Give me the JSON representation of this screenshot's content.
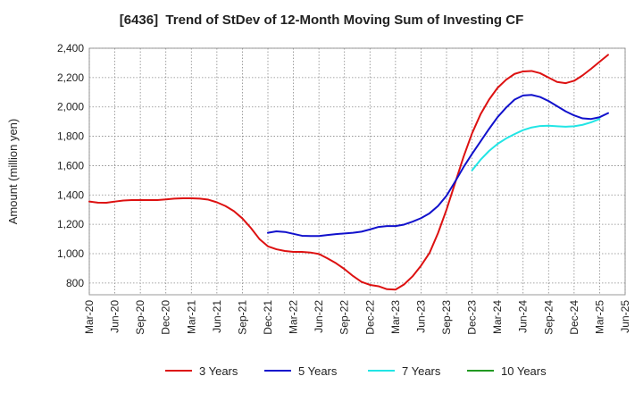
{
  "chart_data": {
    "type": "line",
    "title": "[6436]  Trend of StDev of 12-Month Moving Sum of Investing CF",
    "xlabel": "",
    "ylabel": "Amount (million yen)",
    "ylim": [
      720,
      2400
    ],
    "yticks": [
      800,
      1000,
      1200,
      1400,
      1600,
      1800,
      2000,
      2200,
      2400
    ],
    "ytick_labels": [
      "800",
      "1,000",
      "1,200",
      "1,400",
      "1,600",
      "1,800",
      "2,000",
      "2,200",
      "2,400"
    ],
    "x_start": "Mar-20",
    "x_months_total": 63,
    "xtick_labels": [
      "Mar-20",
      "Jun-20",
      "Sep-20",
      "Dec-20",
      "Mar-21",
      "Jun-21",
      "Sep-21",
      "Dec-21",
      "Mar-22",
      "Jun-22",
      "Sep-22",
      "Dec-22",
      "Mar-23",
      "Jun-23",
      "Sep-23",
      "Dec-23",
      "Mar-24",
      "Jun-24",
      "Sep-24",
      "Dec-24",
      "Mar-25",
      "Jun-25"
    ],
    "grid": true,
    "legend_position": "bottom",
    "series": [
      {
        "name": "3 Years",
        "color": "#dd1111",
        "start_month_index": 0,
        "values": [
          1355,
          1348,
          1347,
          1355,
          1362,
          1365,
          1366,
          1365,
          1365,
          1370,
          1375,
          1377,
          1377,
          1375,
          1368,
          1350,
          1325,
          1290,
          1240,
          1175,
          1100,
          1050,
          1030,
          1018,
          1012,
          1012,
          1008,
          998,
          968,
          935,
          895,
          848,
          808,
          787,
          778,
          758,
          755,
          790,
          845,
          918,
          1005,
          1140,
          1300,
          1480,
          1660,
          1820,
          1950,
          2050,
          2130,
          2185,
          2225,
          2242,
          2245,
          2230,
          2200,
          2170,
          2162,
          2178,
          2215,
          2260,
          2308,
          2355
        ]
      },
      {
        "name": "5 Years",
        "color": "#1111cc",
        "start_month_index": 21,
        "values": [
          1142,
          1152,
          1148,
          1135,
          1122,
          1120,
          1120,
          1127,
          1133,
          1138,
          1142,
          1150,
          1165,
          1182,
          1188,
          1188,
          1198,
          1218,
          1242,
          1275,
          1325,
          1395,
          1490,
          1590,
          1680,
          1765,
          1850,
          1930,
          1995,
          2050,
          2078,
          2082,
          2068,
          2040,
          2005,
          1970,
          1942,
          1922,
          1918,
          1930,
          1958
        ]
      },
      {
        "name": "7 Years",
        "color": "#22e5e5",
        "start_month_index": 45,
        "values": [
          1568,
          1640,
          1700,
          1748,
          1785,
          1815,
          1842,
          1860,
          1870,
          1872,
          1868,
          1865,
          1868,
          1878,
          1895,
          1918
        ]
      },
      {
        "name": "10 Years",
        "color": "#229922",
        "start_month_index": 63,
        "values": []
      }
    ]
  }
}
